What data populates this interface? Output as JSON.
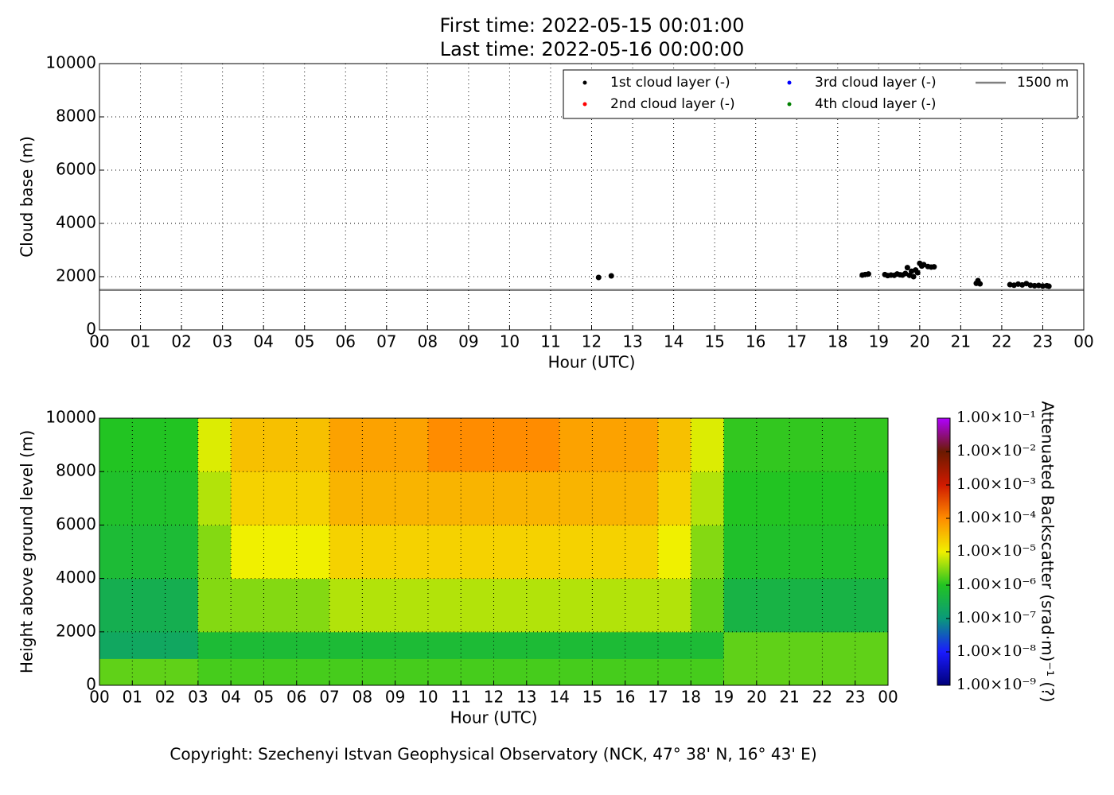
{
  "footer": "Copyright: Szechenyi Istvan Geophysical Observatory (NCK, 47° 38' N, 16° 43' E)",
  "chart_data": [
    {
      "type": "scatter",
      "title": "First time: 2022-05-15 00:01:00",
      "subtitle": "Last time: 2022-05-16 00:00:00",
      "xlabel": "Hour (UTC)",
      "ylabel": "Cloud base (m)",
      "xlim": [
        0,
        24
      ],
      "ylim": [
        0,
        10000
      ],
      "xticks": [
        {
          "value": 0,
          "label": "00"
        },
        {
          "value": 1,
          "label": "01"
        },
        {
          "value": 2,
          "label": "02"
        },
        {
          "value": 3,
          "label": "03"
        },
        {
          "value": 4,
          "label": "04"
        },
        {
          "value": 5,
          "label": "05"
        },
        {
          "value": 6,
          "label": "06"
        },
        {
          "value": 7,
          "label": "07"
        },
        {
          "value": 8,
          "label": "08"
        },
        {
          "value": 9,
          "label": "09"
        },
        10,
        11,
        12,
        13,
        14,
        15,
        16,
        17,
        18,
        19,
        20,
        21,
        22,
        23,
        {
          "value": 24,
          "label": "00"
        }
      ],
      "yticks": [
        0,
        2000,
        4000,
        6000,
        8000,
        10000
      ],
      "grid": true,
      "legend": "upper right",
      "series": [
        {
          "name": "1st cloud layer (-)",
          "color": "#000000",
          "x": [
            12.17,
            12.48,
            18.6,
            18.67,
            18.75,
            19.15,
            19.22,
            19.3,
            19.38,
            19.45,
            19.52,
            19.58,
            19.65,
            19.7,
            19.75,
            19.8,
            19.85,
            19.9,
            19.95,
            20.0,
            20.05,
            20.1,
            20.2,
            20.28,
            20.35,
            21.38,
            21.42,
            21.47,
            22.2,
            22.3,
            22.4,
            22.5,
            22.6,
            22.7,
            22.8,
            22.9,
            23.0,
            23.1,
            23.15
          ],
          "values": [
            1970,
            2030,
            2060,
            2080,
            2100,
            2080,
            2040,
            2060,
            2050,
            2100,
            2070,
            2060,
            2120,
            2340,
            2050,
            2200,
            2000,
            2250,
            2150,
            2500,
            2400,
            2450,
            2380,
            2360,
            2370,
            1750,
            1850,
            1730,
            1700,
            1680,
            1720,
            1690,
            1740,
            1680,
            1660,
            1670,
            1650,
            1660,
            1640
          ]
        },
        {
          "name": "2nd cloud layer (-)",
          "color": "#ff0000",
          "x": [],
          "values": []
        },
        {
          "name": "3rd cloud layer (-)",
          "color": "#0000ff",
          "x": [],
          "values": []
        },
        {
          "name": "4th cloud layer (-)",
          "color": "#008000",
          "x": [],
          "values": []
        }
      ],
      "hlines": [
        {
          "name": "1500 m",
          "value": 1500,
          "color": "#808080"
        }
      ]
    },
    {
      "type": "heatmap",
      "xlabel": "Hour (UTC)",
      "ylabel": "Height above ground level (m)",
      "xlim": [
        0,
        24
      ],
      "ylim": [
        0,
        10000
      ],
      "xticks": [
        {
          "value": 0,
          "label": "00"
        },
        {
          "value": 1,
          "label": "01"
        },
        {
          "value": 2,
          "label": "02"
        },
        {
          "value": 3,
          "label": "03"
        },
        {
          "value": 4,
          "label": "04"
        },
        {
          "value": 5,
          "label": "05"
        },
        {
          "value": 6,
          "label": "06"
        },
        {
          "value": 7,
          "label": "07"
        },
        {
          "value": 8,
          "label": "08"
        },
        {
          "value": 9,
          "label": "09"
        },
        10,
        11,
        12,
        13,
        14,
        15,
        16,
        17,
        18,
        19,
        20,
        21,
        22,
        23,
        {
          "value": 24,
          "label": "00"
        }
      ],
      "yticks": [
        0,
        2000,
        4000,
        6000,
        8000,
        10000
      ],
      "grid": true,
      "xbins": [
        0,
        1,
        2,
        3,
        4,
        5,
        6,
        7,
        8,
        9,
        10,
        11,
        12,
        13,
        14,
        15,
        16,
        17,
        18,
        19,
        20,
        21,
        22,
        23,
        24
      ],
      "ybins": [
        0,
        1000,
        2000,
        4000,
        6000,
        8000,
        10000
      ],
      "z": [
        [
          2e-06,
          2e-06,
          2e-06,
          1.5e-06,
          1.5e-06,
          1.5e-06,
          1.5e-06,
          1.5e-06,
          1.5e-06,
          1.5e-06,
          1.5e-06,
          1.5e-06,
          1.5e-06,
          1.5e-06,
          1.5e-06,
          1.5e-06,
          1.5e-06,
          1.5e-06,
          1.5e-06,
          2e-06,
          2e-06,
          2e-06,
          2e-06,
          2e-06
        ],
        [
          2e-07,
          2e-07,
          2e-07,
          6e-07,
          6e-07,
          6e-07,
          6e-07,
          6e-07,
          6e-07,
          6e-07,
          6e-07,
          6e-07,
          6e-07,
          6e-07,
          6e-07,
          6e-07,
          6e-07,
          6e-07,
          6e-07,
          2e-06,
          2e-06,
          2e-06,
          2e-06,
          2e-06
        ],
        [
          3e-07,
          3e-07,
          3e-07,
          3e-06,
          3e-06,
          3e-06,
          3e-06,
          5e-06,
          5e-06,
          5e-06,
          5e-06,
          5e-06,
          5e-06,
          5e-06,
          5e-06,
          5e-06,
          5e-06,
          5e-06,
          2e-06,
          4e-07,
          4e-07,
          4e-07,
          4e-07,
          4e-07
        ],
        [
          6e-07,
          6e-07,
          6e-07,
          3e-06,
          1e-05,
          1e-05,
          1e-05,
          2e-05,
          2e-05,
          2e-05,
          2e-05,
          2e-05,
          2e-05,
          2e-05,
          2e-05,
          2e-05,
          2e-05,
          1e-05,
          3e-06,
          8e-07,
          8e-07,
          8e-07,
          8e-07,
          8e-07
        ],
        [
          8e-07,
          8e-07,
          8e-07,
          5e-06,
          2e-05,
          2e-05,
          2e-05,
          4e-05,
          4e-05,
          4e-05,
          4e-05,
          4e-05,
          4e-05,
          4e-05,
          4e-05,
          4e-05,
          4e-05,
          2e-05,
          5e-06,
          1e-06,
          1e-06,
          1e-06,
          1e-06,
          1e-06
        ],
        [
          1e-06,
          1e-06,
          1e-06,
          8e-06,
          3e-05,
          3e-05,
          3e-05,
          6e-05,
          6e-05,
          6e-05,
          0.0001,
          0.0001,
          0.0001,
          0.0001,
          6e-05,
          6e-05,
          6e-05,
          3e-05,
          8e-06,
          1.2e-06,
          1.2e-06,
          1.2e-06,
          1.2e-06,
          1.2e-06
        ]
      ],
      "zscale": "log",
      "zlim": [
        1e-09,
        0.1
      ],
      "zticks": [
        {
          "value": 1e-09,
          "label": "1.00×10⁻⁹"
        },
        {
          "value": 1e-08,
          "label": "1.00×10⁻⁸"
        },
        {
          "value": 1e-07,
          "label": "1.00×10⁻⁷"
        },
        {
          "value": 1e-06,
          "label": "1.00×10⁻⁶"
        },
        {
          "value": 1e-05,
          "label": "1.00×10⁻⁵"
        },
        {
          "value": 0.0001,
          "label": "1.00×10⁻⁴"
        },
        {
          "value": 0.001,
          "label": "1.00×10⁻³"
        },
        {
          "value": 0.01,
          "label": "1.00×10⁻²"
        },
        {
          "value": 0.1,
          "label": "1.00×10⁻¹"
        }
      ],
      "zlabel": "Attenuated Backscatter (srad·m)⁻¹ (?)",
      "colormap": [
        "#00007a",
        "#1a1aff",
        "#0a9a7a",
        "#22c422",
        "#f0f000",
        "#ff8c00",
        "#d01a00",
        "#6b1a00",
        "#b000ff"
      ]
    }
  ]
}
